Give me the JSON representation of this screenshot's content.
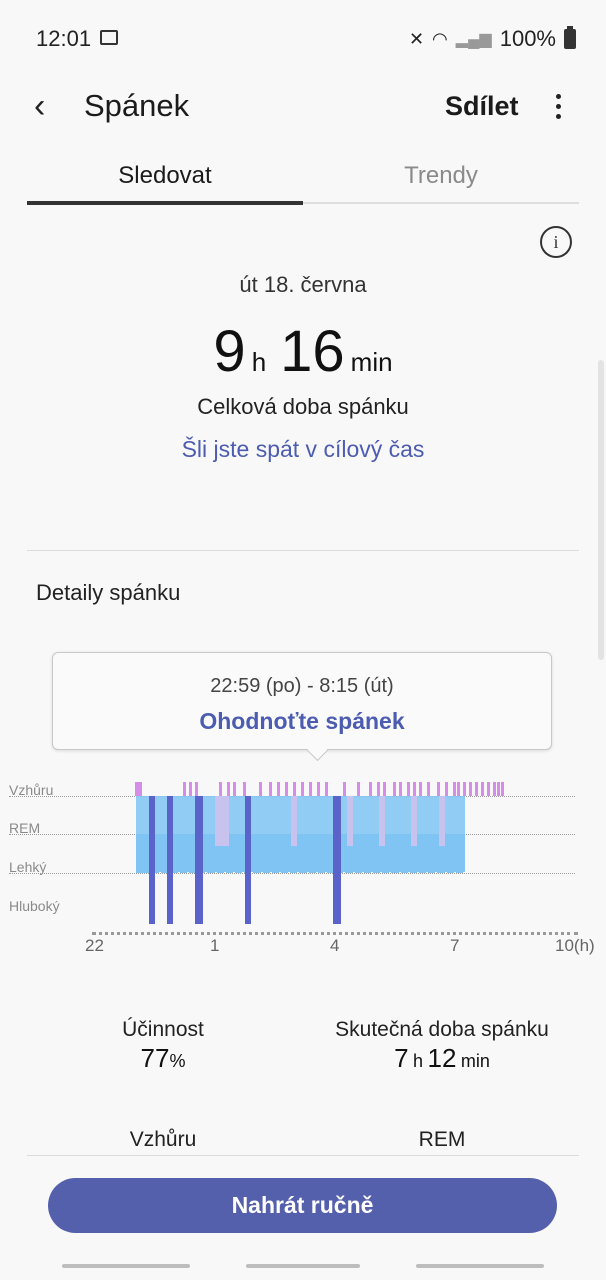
{
  "status_bar": {
    "time": "12:01",
    "battery": "100%",
    "icons": [
      "image-icon",
      "mute-icon",
      "wifi-icon",
      "signal-icon",
      "battery-icon"
    ]
  },
  "header": {
    "title": "Spánek",
    "share_label": "Sdílet",
    "back_icon": "‹",
    "more_icon": "more-vert-icon"
  },
  "tabs": [
    {
      "label": "Sledovat",
      "active": true
    },
    {
      "label": "Trendy",
      "active": false
    }
  ],
  "summary": {
    "info_icon": "i",
    "date": "út 18. června",
    "hours": "9",
    "hours_unit": "h",
    "minutes": "16",
    "minutes_unit": "min",
    "caption": "Celková doba spánku",
    "goal_link": "Šli jste spát v cílový čas"
  },
  "details": {
    "heading": "Detaily spánku",
    "tooltip_range": "22:59 (po) - 8:15 (út)",
    "tooltip_action": "Ohodnoťte spánek"
  },
  "chart_data": {
    "type": "sleep-stages",
    "stages": [
      "Vzhůru",
      "REM",
      "Lehký",
      "Hluboký"
    ],
    "x_ticks": [
      "22",
      "1",
      "4",
      "7",
      "10(h)"
    ],
    "x_range_hours": [
      22,
      34
    ],
    "colors": {
      "awake": "#d68de8",
      "rem": "#c8c2ef",
      "light": "#7fc4f3",
      "deep": "#5a63c9"
    },
    "deep_segments": [
      {
        "start": 23.35,
        "end": 23.5
      },
      {
        "start": 23.8,
        "end": 23.95
      },
      {
        "start": 24.5,
        "end": 24.7
      },
      {
        "start": 25.75,
        "end": 25.9
      },
      {
        "start": 27.95,
        "end": 28.15
      }
    ],
    "awake_marks": [
      23.0,
      23.05,
      23.1,
      24.2,
      24.35,
      24.5,
      25.1,
      25.3,
      25.45,
      25.7,
      26.1,
      26.35,
      26.55,
      26.75,
      26.95,
      27.15,
      27.35,
      27.55,
      27.75,
      28.2,
      28.55,
      28.85,
      29.05,
      29.2,
      29.45,
      29.6,
      29.8,
      29.95,
      30.1,
      30.3,
      30.55,
      30.75,
      30.95,
      31.05,
      31.2,
      31.35,
      31.5,
      31.65,
      31.8,
      31.95,
      32.05,
      32.15
    ]
  },
  "stats": {
    "efficiency_label": "Účinnost",
    "efficiency_value": "77",
    "efficiency_unit": "%",
    "actual_label": "Skutečná doba spánku",
    "actual_hours": "7",
    "actual_hours_unit": "h",
    "actual_minutes": "12",
    "actual_minutes_unit": "min",
    "next_label_left": "Vzhůru",
    "next_label_right": "REM"
  },
  "action_button": "Nahrát ručně"
}
